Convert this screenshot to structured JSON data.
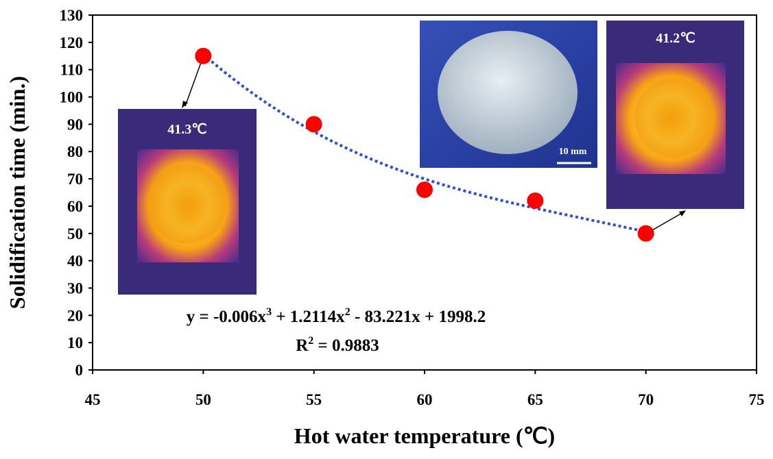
{
  "chart_data": {
    "type": "scatter",
    "xlabel": "Hot water temperature (℃)",
    "ylabel": "Solidification time (min.)",
    "x": [
      50,
      55,
      60,
      65,
      70
    ],
    "series": [
      {
        "color": "#ff0000",
        "values": [
          115,
          90,
          66,
          62,
          50
        ]
      }
    ],
    "xlim": [
      45,
      75
    ],
    "xticks": [
      45,
      50,
      55,
      60,
      65,
      70,
      75
    ],
    "ylim": [
      0,
      130
    ],
    "yticks": [
      0,
      10,
      20,
      30,
      40,
      50,
      60,
      70,
      80,
      90,
      100,
      110,
      120,
      130
    ],
    "trendline": {
      "color": "#2a4fd6",
      "coefficients": [
        -0.006,
        1.2114,
        -83.221,
        1998.2
      ]
    },
    "equation_parts": [
      "y = -0.006x",
      "3",
      " + 1.2114x",
      "2",
      " - 83.221x + 1998.2"
    ],
    "r2_parts": [
      "R",
      "2",
      " = 0.9883"
    ],
    "annotations": {
      "left_temp": "41.3℃",
      "right_temp": "41.2℃",
      "scale": "10 mm"
    }
  }
}
